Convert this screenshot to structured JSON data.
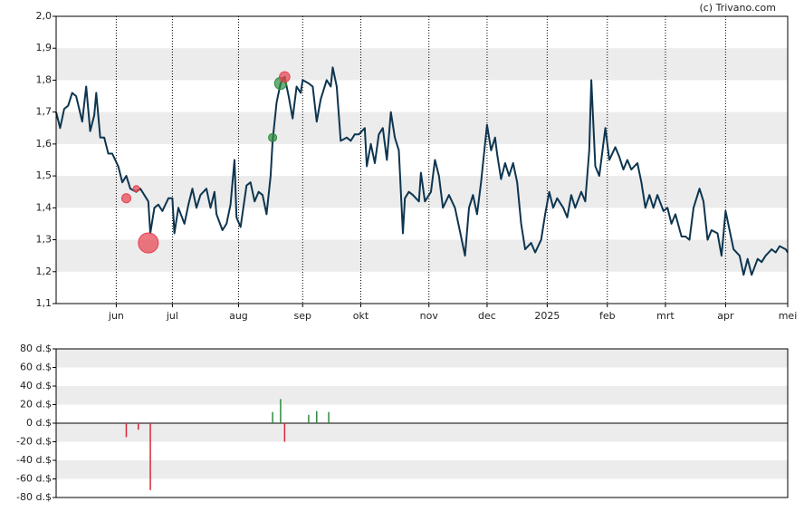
{
  "credit": "(c) Trivano.com",
  "chart_data": [
    {
      "type": "line",
      "color": "#0d3550",
      "x": [
        0,
        2,
        4,
        6,
        8,
        10,
        13,
        15,
        17,
        19,
        20,
        22,
        24,
        26,
        28,
        31,
        33,
        35,
        37,
        40,
        42,
        44,
        46,
        47,
        49,
        51,
        53,
        56,
        58,
        59,
        61,
        64,
        66,
        68,
        70,
        72,
        75,
        77,
        79,
        80,
        83,
        85,
        87,
        89,
        90,
        92,
        95,
        97,
        99,
        101,
        103,
        105,
        107,
        108,
        110,
        112,
        114,
        116,
        118,
        120,
        122,
        123,
        126,
        128,
        130,
        132,
        135,
        137,
        138,
        140,
        142,
        145,
        147,
        149,
        151,
        154,
        155,
        157,
        159,
        161,
        163,
        165,
        167,
        169,
        171,
        173,
        174,
        176,
        178,
        181,
        182,
        184,
        187,
        189,
        191,
        193,
        196,
        199,
        201,
        204,
        206,
        208,
        210,
        212,
        215,
        217,
        219,
        220,
        222,
        224,
        226,
        228,
        230,
        232,
        234,
        237,
        239,
        242,
        244,
        246,
        248,
        250,
        253,
        255,
        257,
        259,
        262,
        264,
        266,
        267,
        269,
        271,
        274,
        276,
        279,
        281,
        283,
        285,
        287,
        290,
        292,
        294,
        296,
        298,
        300,
        303,
        305,
        307,
        309,
        312,
        314,
        316,
        318,
        321,
        323,
        325,
        327,
        330,
        332,
        334,
        336,
        338,
        341,
        343,
        345,
        347,
        350,
        352,
        354,
        357,
        359,
        361,
        364,
        365
      ],
      "values": [
        1.7,
        1.65,
        1.71,
        1.72,
        1.76,
        1.75,
        1.67,
        1.78,
        1.64,
        1.69,
        1.76,
        1.62,
        1.62,
        1.57,
        1.57,
        1.53,
        1.48,
        1.5,
        1.46,
        1.45,
        1.46,
        1.44,
        1.42,
        1.32,
        1.4,
        1.41,
        1.39,
        1.43,
        1.43,
        1.32,
        1.4,
        1.35,
        1.41,
        1.46,
        1.4,
        1.44,
        1.46,
        1.4,
        1.45,
        1.38,
        1.33,
        1.35,
        1.41,
        1.55,
        1.37,
        1.34,
        1.47,
        1.48,
        1.42,
        1.45,
        1.44,
        1.38,
        1.5,
        1.61,
        1.73,
        1.79,
        1.81,
        1.75,
        1.68,
        1.78,
        1.76,
        1.8,
        1.79,
        1.78,
        1.67,
        1.74,
        1.8,
        1.78,
        1.84,
        1.78,
        1.61,
        1.62,
        1.61,
        1.63,
        1.63,
        1.65,
        1.53,
        1.6,
        1.54,
        1.63,
        1.65,
        1.55,
        1.7,
        1.62,
        1.58,
        1.32,
        1.43,
        1.45,
        1.44,
        1.42,
        1.51,
        1.42,
        1.45,
        1.55,
        1.5,
        1.4,
        1.44,
        1.4,
        1.34,
        1.25,
        1.4,
        1.44,
        1.38,
        1.48,
        1.66,
        1.58,
        1.62,
        1.57,
        1.49,
        1.54,
        1.5,
        1.54,
        1.48,
        1.35,
        1.27,
        1.29,
        1.26,
        1.3,
        1.38,
        1.45,
        1.4,
        1.43,
        1.4,
        1.37,
        1.44,
        1.4,
        1.45,
        1.42,
        1.58,
        1.8,
        1.53,
        1.5,
        1.65,
        1.55,
        1.59,
        1.56,
        1.52,
        1.55,
        1.52,
        1.54,
        1.48,
        1.4,
        1.44,
        1.4,
        1.44,
        1.39,
        1.4,
        1.35,
        1.38,
        1.31,
        1.31,
        1.3,
        1.4,
        1.46,
        1.42,
        1.3,
        1.33,
        1.32,
        1.25,
        1.39,
        1.33,
        1.27,
        1.25,
        1.19,
        1.24,
        1.19,
        1.24,
        1.23,
        1.25,
        1.27,
        1.26,
        1.28,
        1.27,
        1.26
      ],
      "markers": {
        "x": [
          35,
          40,
          46,
          108,
          112,
          114
        ],
        "y": [
          1.43,
          1.46,
          1.29,
          1.62,
          1.79,
          1.81
        ],
        "sizes": [
          15,
          7,
          72,
          12,
          26,
          20
        ],
        "colors": [
          "#e8404f",
          "#e8404f",
          "#e8404f",
          "#2e8b3e",
          "#2e8b3e",
          "#e8404f"
        ]
      },
      "xlim": [
        0,
        365
      ],
      "xticks": [
        {
          "value": 30,
          "label": "jun"
        },
        {
          "value": 58,
          "label": "jul"
        },
        {
          "value": 91,
          "label": "aug"
        },
        {
          "value": 123,
          "label": "sep"
        },
        {
          "value": 152,
          "label": "okt"
        },
        {
          "value": 186,
          "label": "nov"
        },
        {
          "value": 215,
          "label": "dec"
        },
        {
          "value": 245,
          "label": "2025"
        },
        {
          "value": 275,
          "label": "feb"
        },
        {
          "value": 304,
          "label": "mrt"
        },
        {
          "value": 334,
          "label": "apr"
        },
        {
          "value": 365,
          "label": "mei"
        }
      ],
      "ylim": [
        1.1,
        2.0
      ],
      "yticks": [
        {
          "value": 1.1,
          "label": "1,1"
        },
        {
          "value": 1.2,
          "label": "1,2"
        },
        {
          "value": 1.3,
          "label": "1,3"
        },
        {
          "value": 1.4,
          "label": "1,4"
        },
        {
          "value": 1.5,
          "label": "1,5"
        },
        {
          "value": 1.6,
          "label": "1,6"
        },
        {
          "value": 1.7,
          "label": "1,7"
        },
        {
          "value": 1.8,
          "label": "1,8"
        },
        {
          "value": 1.9,
          "label": "1,9"
        },
        {
          "value": 2.0,
          "label": "2,0"
        }
      ]
    },
    {
      "type": "bar",
      "positive_color": "#2e8b3e",
      "negative_color": "#d8263a",
      "x": [
        35,
        41,
        47,
        108,
        112,
        114,
        126,
        130,
        136
      ],
      "values": [
        -15,
        -7,
        -72,
        12,
        26,
        -20,
        9,
        13,
        12
      ],
      "xlim": [
        0,
        365
      ],
      "ylim": [
        -80,
        80
      ],
      "yticks": [
        {
          "value": -80,
          "label": "-80 d.$"
        },
        {
          "value": -60,
          "label": "-60 d.$"
        },
        {
          "value": -40,
          "label": "-40 d.$"
        },
        {
          "value": -20,
          "label": "-20 d.$"
        },
        {
          "value": 0,
          "label": "0 d.$"
        },
        {
          "value": 20,
          "label": "20 d.$"
        },
        {
          "value": 40,
          "label": "40 d.$"
        },
        {
          "value": 60,
          "label": "60 d.$"
        },
        {
          "value": 80,
          "label": "80 d.$"
        }
      ]
    }
  ]
}
